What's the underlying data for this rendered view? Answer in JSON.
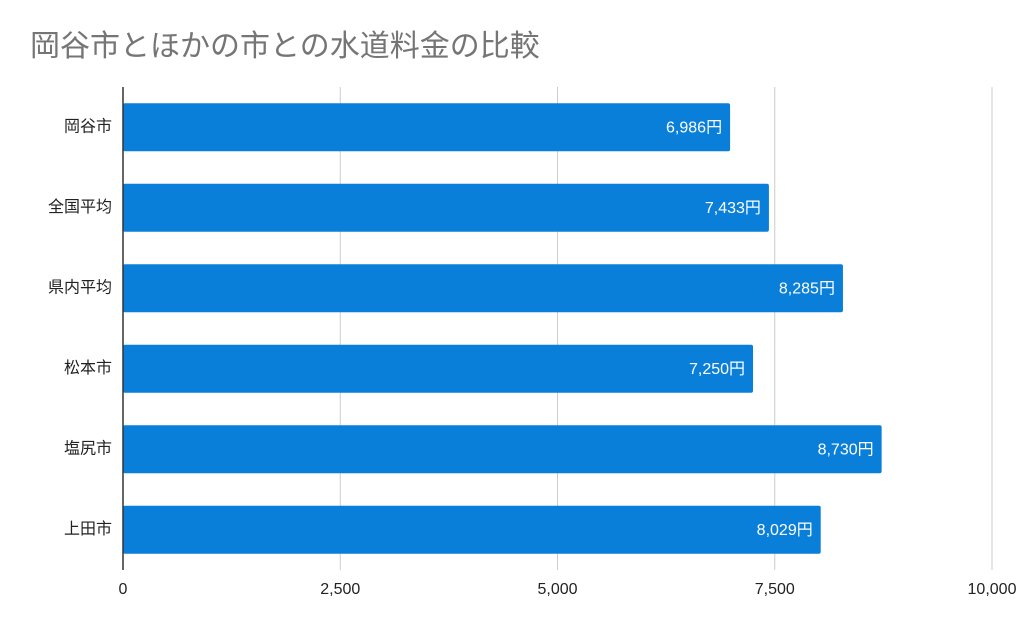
{
  "chart_data": {
    "type": "bar",
    "orientation": "horizontal",
    "title": "岡谷市とほかの市との水道料金の比較",
    "categories": [
      "岡谷市",
      "全国平均",
      "県内平均",
      "松本市",
      "塩尻市",
      "上田市"
    ],
    "values": [
      6986,
      7433,
      8285,
      7250,
      8730,
      8029
    ],
    "value_labels": [
      "6,986円",
      "7,433円",
      "8,285円",
      "7,250円",
      "8,730円",
      "8,029円"
    ],
    "color": "#0a7fd9",
    "xlim": [
      0,
      10000
    ],
    "xticks": [
      0,
      {
        "value": 2500,
        "label": "2,500"
      },
      {
        "value": 5000,
        "label": "5,000"
      },
      {
        "value": 7500,
        "label": "7,500"
      },
      {
        "value": 10000,
        "label": "10,000"
      }
    ],
    "grid": true
  }
}
